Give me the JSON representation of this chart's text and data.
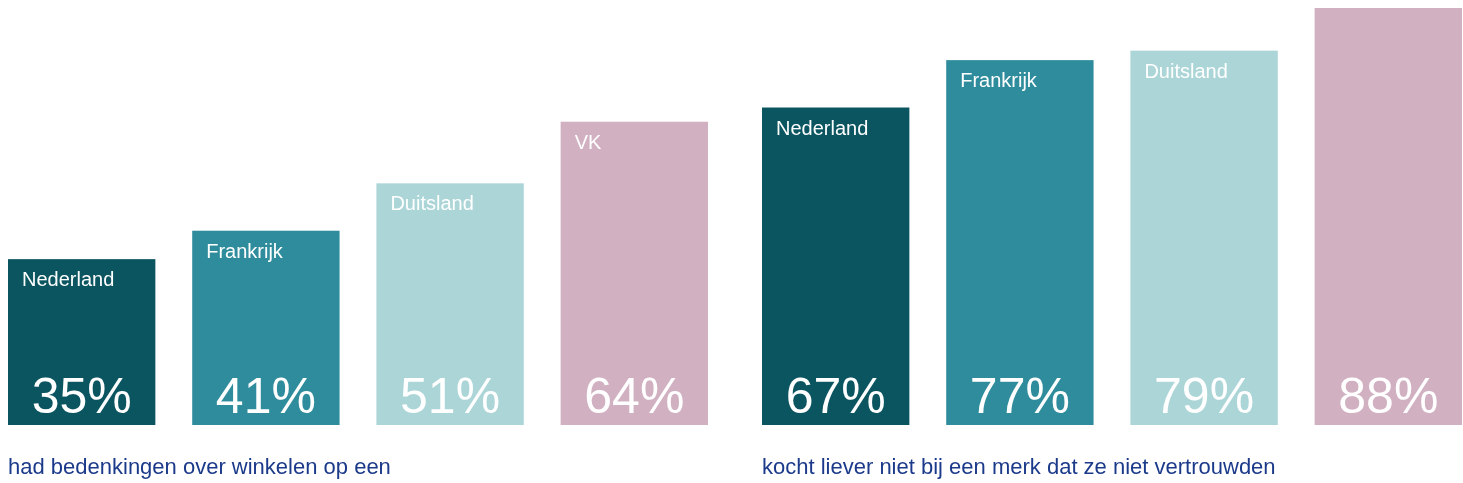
{
  "chart_data": [
    {
      "type": "bar",
      "categories": [
        "Nederland",
        "Frankrijk",
        "Duitsland",
        "VK"
      ],
      "values": [
        35,
        41,
        51,
        64
      ],
      "colors": [
        "#0b5560",
        "#2e8c9c",
        "#acd5d7",
        "#d1b0c2"
      ],
      "value_labels": [
        "35%",
        "41%",
        "51%",
        "64%"
      ],
      "xlabel": "had bedenkingen over winkelen op een"
    },
    {
      "type": "bar",
      "categories": [
        "Nederland",
        "Frankrijk",
        "Duitsland",
        null
      ],
      "values": [
        67,
        77,
        79,
        88
      ],
      "colors": [
        "#0b5560",
        "#2e8c9c",
        "#acd5d7",
        "#d1b0c2"
      ],
      "value_labels": [
        "67%",
        "77%",
        "79%",
        "88%"
      ],
      "xlabel": "kocht liever niet bij een merk dat ze niet vertrouwden"
    }
  ]
}
